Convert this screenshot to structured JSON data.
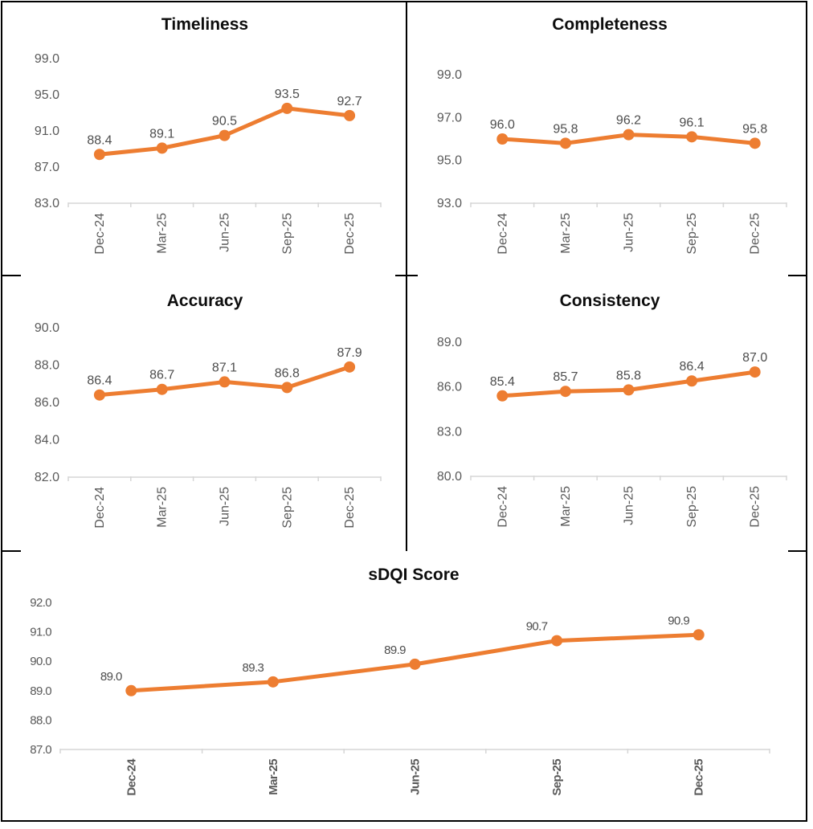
{
  "colors": {
    "series_line": "#ED7D31",
    "marker": "#ED7D31",
    "data_label_text": "#4D4D4D",
    "axis_tick_label_text": "#595959",
    "title_text": "#0D0D0D",
    "axis_line": "#D6D6D6",
    "frame_border": "#000000",
    "background": "#FFFFFF"
  },
  "chart_data": [
    {
      "id": "timeliness",
      "type": "line",
      "title": "Timeliness",
      "categories": [
        "Dec-24",
        "Mar-25",
        "Jun-25",
        "Sep-25",
        "Dec-25"
      ],
      "values": [
        88.4,
        89.1,
        90.5,
        93.5,
        92.7
      ],
      "data_labels": [
        "88.4",
        "89.1",
        "90.5",
        "93.5",
        "92.7"
      ],
      "yticks": [
        99.0,
        95.0,
        91.0,
        87.0,
        83.0
      ],
      "ylim": [
        83.0,
        99.0
      ],
      "xlabel": "",
      "ylabel": "",
      "grid": false,
      "legend": "none"
    },
    {
      "id": "completeness",
      "type": "line",
      "title": "Completeness",
      "categories": [
        "Dec-24",
        "Mar-25",
        "Jun-25",
        "Sep-25",
        "Dec-25"
      ],
      "values": [
        96.0,
        95.8,
        96.2,
        96.1,
        95.8
      ],
      "data_labels": [
        "96.0",
        "95.8",
        "96.2",
        "96.1",
        "95.8"
      ],
      "yticks": [
        99.0,
        97.0,
        95.0,
        93.0
      ],
      "ylim": [
        93.0,
        99.0
      ],
      "xlabel": "",
      "ylabel": "",
      "grid": false,
      "legend": "none"
    },
    {
      "id": "accuracy",
      "type": "line",
      "title": "Accuracy",
      "categories": [
        "Dec-24",
        "Mar-25",
        "Jun-25",
        "Sep-25",
        "Dec-25"
      ],
      "values": [
        86.4,
        86.7,
        87.1,
        86.8,
        87.9
      ],
      "data_labels": [
        "86.4",
        "86.7",
        "87.1",
        "86.8",
        "87.9"
      ],
      "yticks": [
        90.0,
        88.0,
        86.0,
        84.0,
        82.0
      ],
      "ylim": [
        82.0,
        90.0
      ],
      "xlabel": "",
      "ylabel": "",
      "grid": false,
      "legend": "none"
    },
    {
      "id": "consistency",
      "type": "line",
      "title": "Consistency",
      "categories": [
        "Dec-24",
        "Mar-25",
        "Jun-25",
        "Sep-25",
        "Dec-25"
      ],
      "values": [
        85.4,
        85.7,
        85.8,
        86.4,
        87.0
      ],
      "data_labels": [
        "85.4",
        "85.7",
        "85.8",
        "86.4",
        "87.0"
      ],
      "yticks": [
        89.0,
        86.0,
        83.0,
        80.0
      ],
      "ylim": [
        80.0,
        89.0
      ],
      "xlabel": "",
      "ylabel": "",
      "grid": false,
      "legend": "none"
    },
    {
      "id": "sdqi_score",
      "type": "line",
      "title": "sDQI Score",
      "categories": [
        "Dec-24",
        "Mar-25",
        "Jun-25",
        "Sep-25",
        "Dec-25"
      ],
      "values": [
        89.0,
        89.3,
        89.9,
        90.7,
        90.9
      ],
      "data_labels": [
        "89.0",
        "89.3",
        "89.9",
        "90.7",
        "90.9"
      ],
      "yticks": [
        92.0,
        91.0,
        90.0,
        89.0,
        88.0,
        87.0
      ],
      "ylim": [
        87.0,
        92.0
      ],
      "xlabel": "",
      "ylabel": "",
      "grid": false,
      "legend": "none"
    }
  ]
}
